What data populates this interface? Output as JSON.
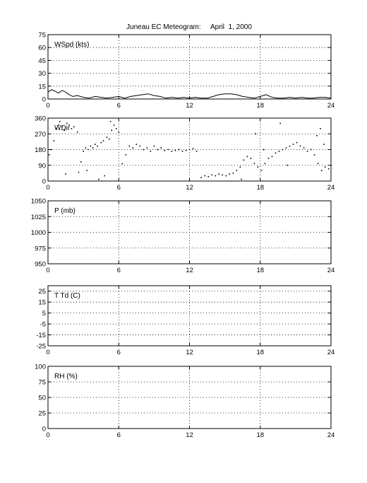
{
  "title": "Juneau EC Meteogram:     April  1, 2000",
  "chart_data": [
    {
      "type": "line",
      "panel": "wspd",
      "label": "WSpd (kts)",
      "xlim": [
        0,
        24
      ],
      "xticks": [
        0,
        6,
        12,
        18,
        24
      ],
      "ylim": [
        0,
        75
      ],
      "yticks": [
        0,
        15,
        30,
        45,
        60,
        75
      ],
      "grid": true,
      "series": [
        {
          "x": [
            0.0,
            0.3,
            0.6,
            0.9,
            1.2,
            1.5,
            1.8,
            2.1,
            2.5,
            3.0,
            3.5,
            4.0,
            4.5,
            5.0,
            5.5,
            6.0,
            6.5,
            7.0,
            7.5,
            8.0,
            8.5,
            9.0,
            9.5,
            10.0,
            10.5,
            11.0,
            11.5,
            12.0,
            12.5,
            13.0,
            13.5,
            14.0,
            14.5,
            15.0,
            15.5,
            16.0,
            16.5,
            17.0,
            17.5,
            18.0,
            18.5,
            19.0,
            19.5,
            20.0,
            20.5,
            21.0,
            21.5,
            22.0,
            22.5,
            23.0,
            23.5,
            24.0
          ],
          "y": [
            8,
            11,
            9,
            7,
            10,
            8,
            5,
            3,
            4,
            2,
            1,
            3,
            2,
            1,
            2,
            3,
            1,
            3,
            4,
            5,
            6,
            4,
            3,
            1,
            2,
            1,
            2,
            1,
            2,
            1,
            1,
            3,
            5,
            6,
            6,
            5,
            3,
            2,
            1,
            3,
            5,
            2,
            1,
            1,
            2,
            1,
            2,
            1,
            1,
            2,
            2,
            1
          ]
        }
      ]
    },
    {
      "type": "scatter",
      "panel": "wdir",
      "label": "WDir",
      "xlim": [
        0,
        24
      ],
      "xticks": [
        0,
        6,
        12,
        18,
        24
      ],
      "ylim": [
        0,
        360
      ],
      "yticks": [
        0,
        90,
        180,
        270,
        360
      ],
      "grid": true,
      "series": [
        {
          "x": [
            0.1,
            0.3,
            0.5,
            0.7,
            0.9,
            1.0,
            1.2,
            1.4,
            1.6,
            1.8,
            2.0,
            2.2,
            2.6,
            2.8,
            3.0,
            3.2,
            3.4,
            3.6,
            3.8,
            4.0,
            4.2,
            4.5,
            4.7,
            5.0,
            5.2,
            5.4,
            5.6,
            5.8,
            6.0,
            6.3,
            6.6,
            6.9,
            7.2,
            7.5,
            7.8,
            8.1,
            8.4,
            8.7,
            9.0,
            9.3,
            9.6,
            9.9,
            10.2,
            10.5,
            10.8,
            11.1,
            11.4,
            11.7,
            12.0,
            12.3,
            12.6,
            13.0,
            13.3,
            13.6,
            13.9,
            14.2,
            14.5,
            14.8,
            15.1,
            15.4,
            15.7,
            16.0,
            16.3,
            16.6,
            16.9,
            17.2,
            17.5,
            17.8,
            18.1,
            18.4,
            18.7,
            19.0,
            19.3,
            19.6,
            19.9,
            20.2,
            20.5,
            20.8,
            21.1,
            21.4,
            21.7,
            22.0,
            22.3,
            22.6,
            22.9,
            23.2,
            23.5,
            23.8,
            24.0,
            1.5,
            2.5,
            3.3,
            4.3,
            4.8,
            5.3,
            16.4,
            17.6,
            18.3,
            19.7,
            20.3,
            22.8,
            23.1,
            23.4
          ],
          "y": [
            150,
            180,
            230,
            300,
            320,
            340,
            310,
            290,
            330,
            320,
            300,
            310,
            50,
            110,
            170,
            190,
            180,
            200,
            190,
            210,
            200,
            220,
            230,
            250,
            240,
            290,
            320,
            300,
            280,
            100,
            150,
            200,
            190,
            210,
            200,
            180,
            190,
            170,
            200,
            180,
            190,
            175,
            180,
            170,
            175,
            180,
            170,
            175,
            180,
            185,
            170,
            20,
            30,
            25,
            35,
            30,
            40,
            35,
            30,
            40,
            45,
            60,
            80,
            120,
            140,
            130,
            100,
            80,
            60,
            100,
            130,
            140,
            160,
            170,
            180,
            190,
            200,
            210,
            220,
            200,
            190,
            170,
            180,
            150,
            100,
            60,
            80,
            70,
            90,
            40,
            280,
            60,
            10,
            30,
            340,
            10,
            270,
            180,
            330,
            90,
            260,
            300,
            210
          ]
        }
      ]
    },
    {
      "type": "line",
      "panel": "pressure",
      "label": "P (mb)",
      "xlim": [
        0,
        24
      ],
      "xticks": [
        0,
        6,
        12,
        18,
        24
      ],
      "ylim": [
        950,
        1050
      ],
      "yticks": [
        950,
        975,
        1000,
        1025,
        1050
      ],
      "grid": true,
      "series": []
    },
    {
      "type": "line",
      "panel": "temperature",
      "label": "T Td (C)",
      "xlim": [
        0,
        24
      ],
      "xticks": [
        0,
        6,
        12,
        18,
        24
      ],
      "ylim": [
        -25,
        30
      ],
      "yticks": [
        -25,
        -15,
        -5,
        5,
        15,
        25
      ],
      "grid": true,
      "series": []
    },
    {
      "type": "line",
      "panel": "rh",
      "label": "RH (%)",
      "xlim": [
        0,
        24
      ],
      "xticks": [
        0,
        6,
        12,
        18,
        24
      ],
      "ylim": [
        0,
        100
      ],
      "yticks": [
        0,
        25,
        50,
        75,
        100
      ],
      "grid": true,
      "series": []
    }
  ]
}
